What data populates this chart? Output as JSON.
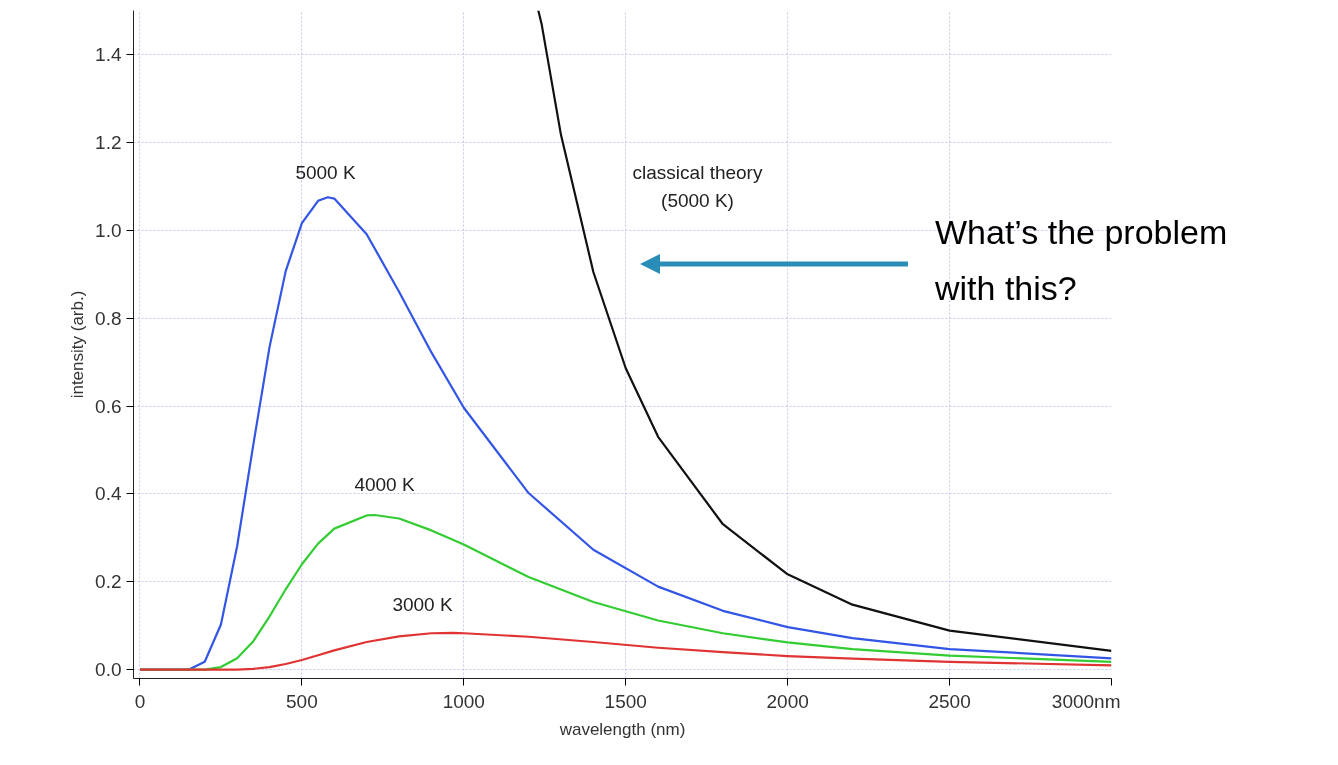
{
  "chart_data": {
    "type": "line",
    "xlabel": "wavelength (nm)",
    "ylabel": "intensity (arb.)",
    "xlim": [
      -20,
      3000
    ],
    "ylim": [
      -0.02,
      1.5
    ],
    "xticks": [
      0,
      500,
      1000,
      1500,
      2000,
      2500,
      {
        "value": 3000,
        "label": "3000nm"
      }
    ],
    "yticks": [
      {
        "value": 0,
        "label": "0.0"
      },
      0.2,
      0.4,
      0.6,
      0.8,
      {
        "value": 1,
        "label": "1.0"
      },
      1.2,
      1.4
    ],
    "grid": true,
    "line_style": "solid",
    "series": [
      {
        "color": "#3355e6",
        "x": [
          0,
          150,
          200,
          250,
          300,
          350,
          400,
          450,
          500,
          550,
          580,
          600,
          700,
          800,
          900,
          1000,
          1200,
          1400,
          1600,
          1800,
          2000,
          2200,
          2500,
          3000
        ],
        "values": [
          0,
          0,
          0.018,
          0.103,
          0.281,
          0.512,
          0.734,
          0.907,
          1.016,
          1.067,
          1.075,
          1.072,
          0.991,
          0.86,
          0.722,
          0.596,
          0.402,
          0.273,
          0.189,
          0.134,
          0.097,
          0.072,
          0.047,
          0.026
        ]
      },
      {
        "color": "#33cc33",
        "x": [
          0,
          200,
          250,
          300,
          350,
          400,
          450,
          500,
          550,
          600,
          700,
          725,
          800,
          900,
          1000,
          1200,
          1400,
          1600,
          1800,
          2000,
          2200,
          2500,
          3000
        ],
        "values": [
          0,
          0,
          0.006,
          0.026,
          0.065,
          0.121,
          0.183,
          0.24,
          0.287,
          0.321,
          0.351,
          0.352,
          0.344,
          0.317,
          0.285,
          0.211,
          0.154,
          0.112,
          0.083,
          0.062,
          0.047,
          0.032,
          0.018
        ]
      },
      {
        "color": "#e03333",
        "x": [
          0,
          300,
          350,
          400,
          450,
          500,
          550,
          600,
          700,
          800,
          900,
          966,
          1000,
          1200,
          1400,
          1600,
          1800,
          2000,
          2200,
          2500,
          3000
        ],
        "values": [
          0,
          0,
          0.002,
          0.006,
          0.013,
          0.022,
          0.033,
          0.044,
          0.063,
          0.076,
          0.083,
          0.084,
          0.083,
          0.075,
          0.063,
          0.05,
          0.04,
          0.031,
          0.025,
          0.018,
          0.01
        ]
      },
      {
        "color": "#111111",
        "x": [
          1230,
          1240,
          1300,
          1400,
          1500,
          1600,
          1800,
          2000,
          2200,
          2500,
          3000
        ],
        "values": [
          1.5,
          1.47,
          1.217,
          0.905,
          0.686,
          0.53,
          0.331,
          0.217,
          0.148,
          0.089,
          0.043
        ]
      }
    ],
    "annotations": [
      "5000 K",
      "4000 K",
      "3000 K",
      "classical theory\n(5000 K)",
      "What’s the problem\nwith this?"
    ]
  }
}
